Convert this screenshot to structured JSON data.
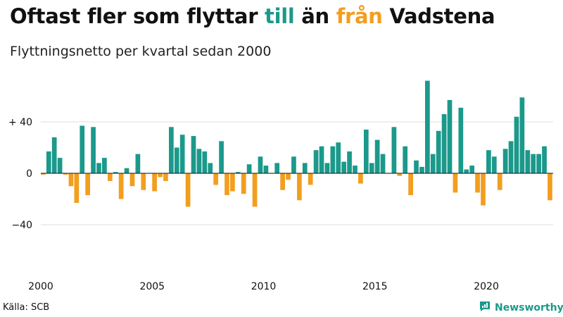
{
  "title": {
    "part1": "Oftast fler som flyttar ",
    "pos_word": "till",
    "mid": " än ",
    "neg_word": "från",
    "part2": " Vadstena"
  },
  "subtitle": "Flyttningsnetto per kvartal sedan 2000",
  "source": "Källa: SCB",
  "brand": "Newsworthy",
  "colors": {
    "positive": "#1b998b",
    "negative": "#f29e1e",
    "grid": "#dddddd",
    "zero_line": "#111111"
  },
  "chart_data": {
    "type": "bar",
    "title": "Flyttningsnetto per kvartal sedan 2000",
    "ylim": [
      -80,
      72
    ],
    "y_ticks": [
      {
        "value": 40,
        "label": "+ 40"
      },
      {
        "value": 0,
        "label": "0"
      },
      {
        "value": -40,
        "label": "−40"
      }
    ],
    "x_ticks": [
      {
        "value": 2000,
        "label": "2000"
      },
      {
        "value": 2005,
        "label": "2005"
      },
      {
        "value": 2010,
        "label": "2010"
      },
      {
        "value": 2015,
        "label": "2015"
      },
      {
        "value": 2020,
        "label": "2020"
      }
    ],
    "start_year": 2000,
    "series": [
      {
        "values": [
          -1,
          17,
          28,
          12,
          -1,
          -10,
          -23,
          37,
          -17,
          36,
          8,
          12,
          -6,
          1,
          -20,
          4,
          -10,
          15,
          -13,
          0,
          -14,
          -3,
          -6,
          36,
          20,
          30,
          -26,
          29,
          19,
          17,
          8,
          -9,
          25,
          -17,
          -14,
          1,
          -16,
          7,
          -26,
          13,
          6,
          0,
          8,
          -13,
          -5,
          13,
          -21,
          8,
          -9,
          18,
          21,
          8,
          21,
          24,
          9,
          17,
          6,
          -8,
          34,
          8,
          26,
          15,
          0,
          36,
          -2,
          21,
          -17,
          10,
          5,
          72,
          15,
          33,
          46,
          57,
          -15,
          51,
          3,
          6,
          -15,
          -25,
          18,
          13,
          -13,
          19,
          25,
          44,
          59,
          18,
          15,
          15,
          21,
          -21
        ]
      }
    ]
  }
}
